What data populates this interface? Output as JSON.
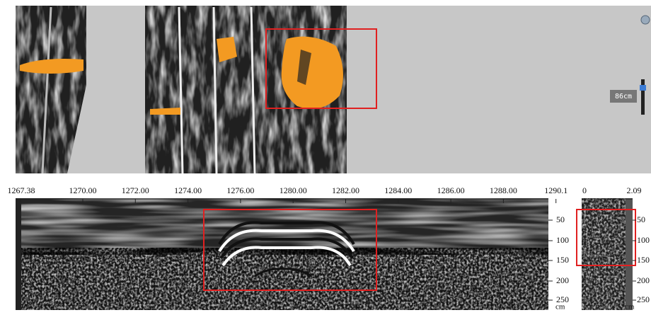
{
  "slider": {
    "label": "86cm"
  },
  "profile": {
    "distance_ticks": [
      "1267.38",
      "1270.00",
      "1272.00",
      "1274.00",
      "1276.00",
      "1280.00",
      "1282.00",
      "1284.00",
      "1286.00",
      "1288.00",
      "1290.1"
    ],
    "depth_ticks": [
      "50",
      "100",
      "150",
      "200",
      "250"
    ],
    "depth_unit": "cm"
  },
  "trace": {
    "ticks": [
      "0",
      "2.09"
    ],
    "depth_ticks": [
      "50",
      "100",
      "150",
      "200",
      "250"
    ],
    "depth_unit": "cm"
  }
}
